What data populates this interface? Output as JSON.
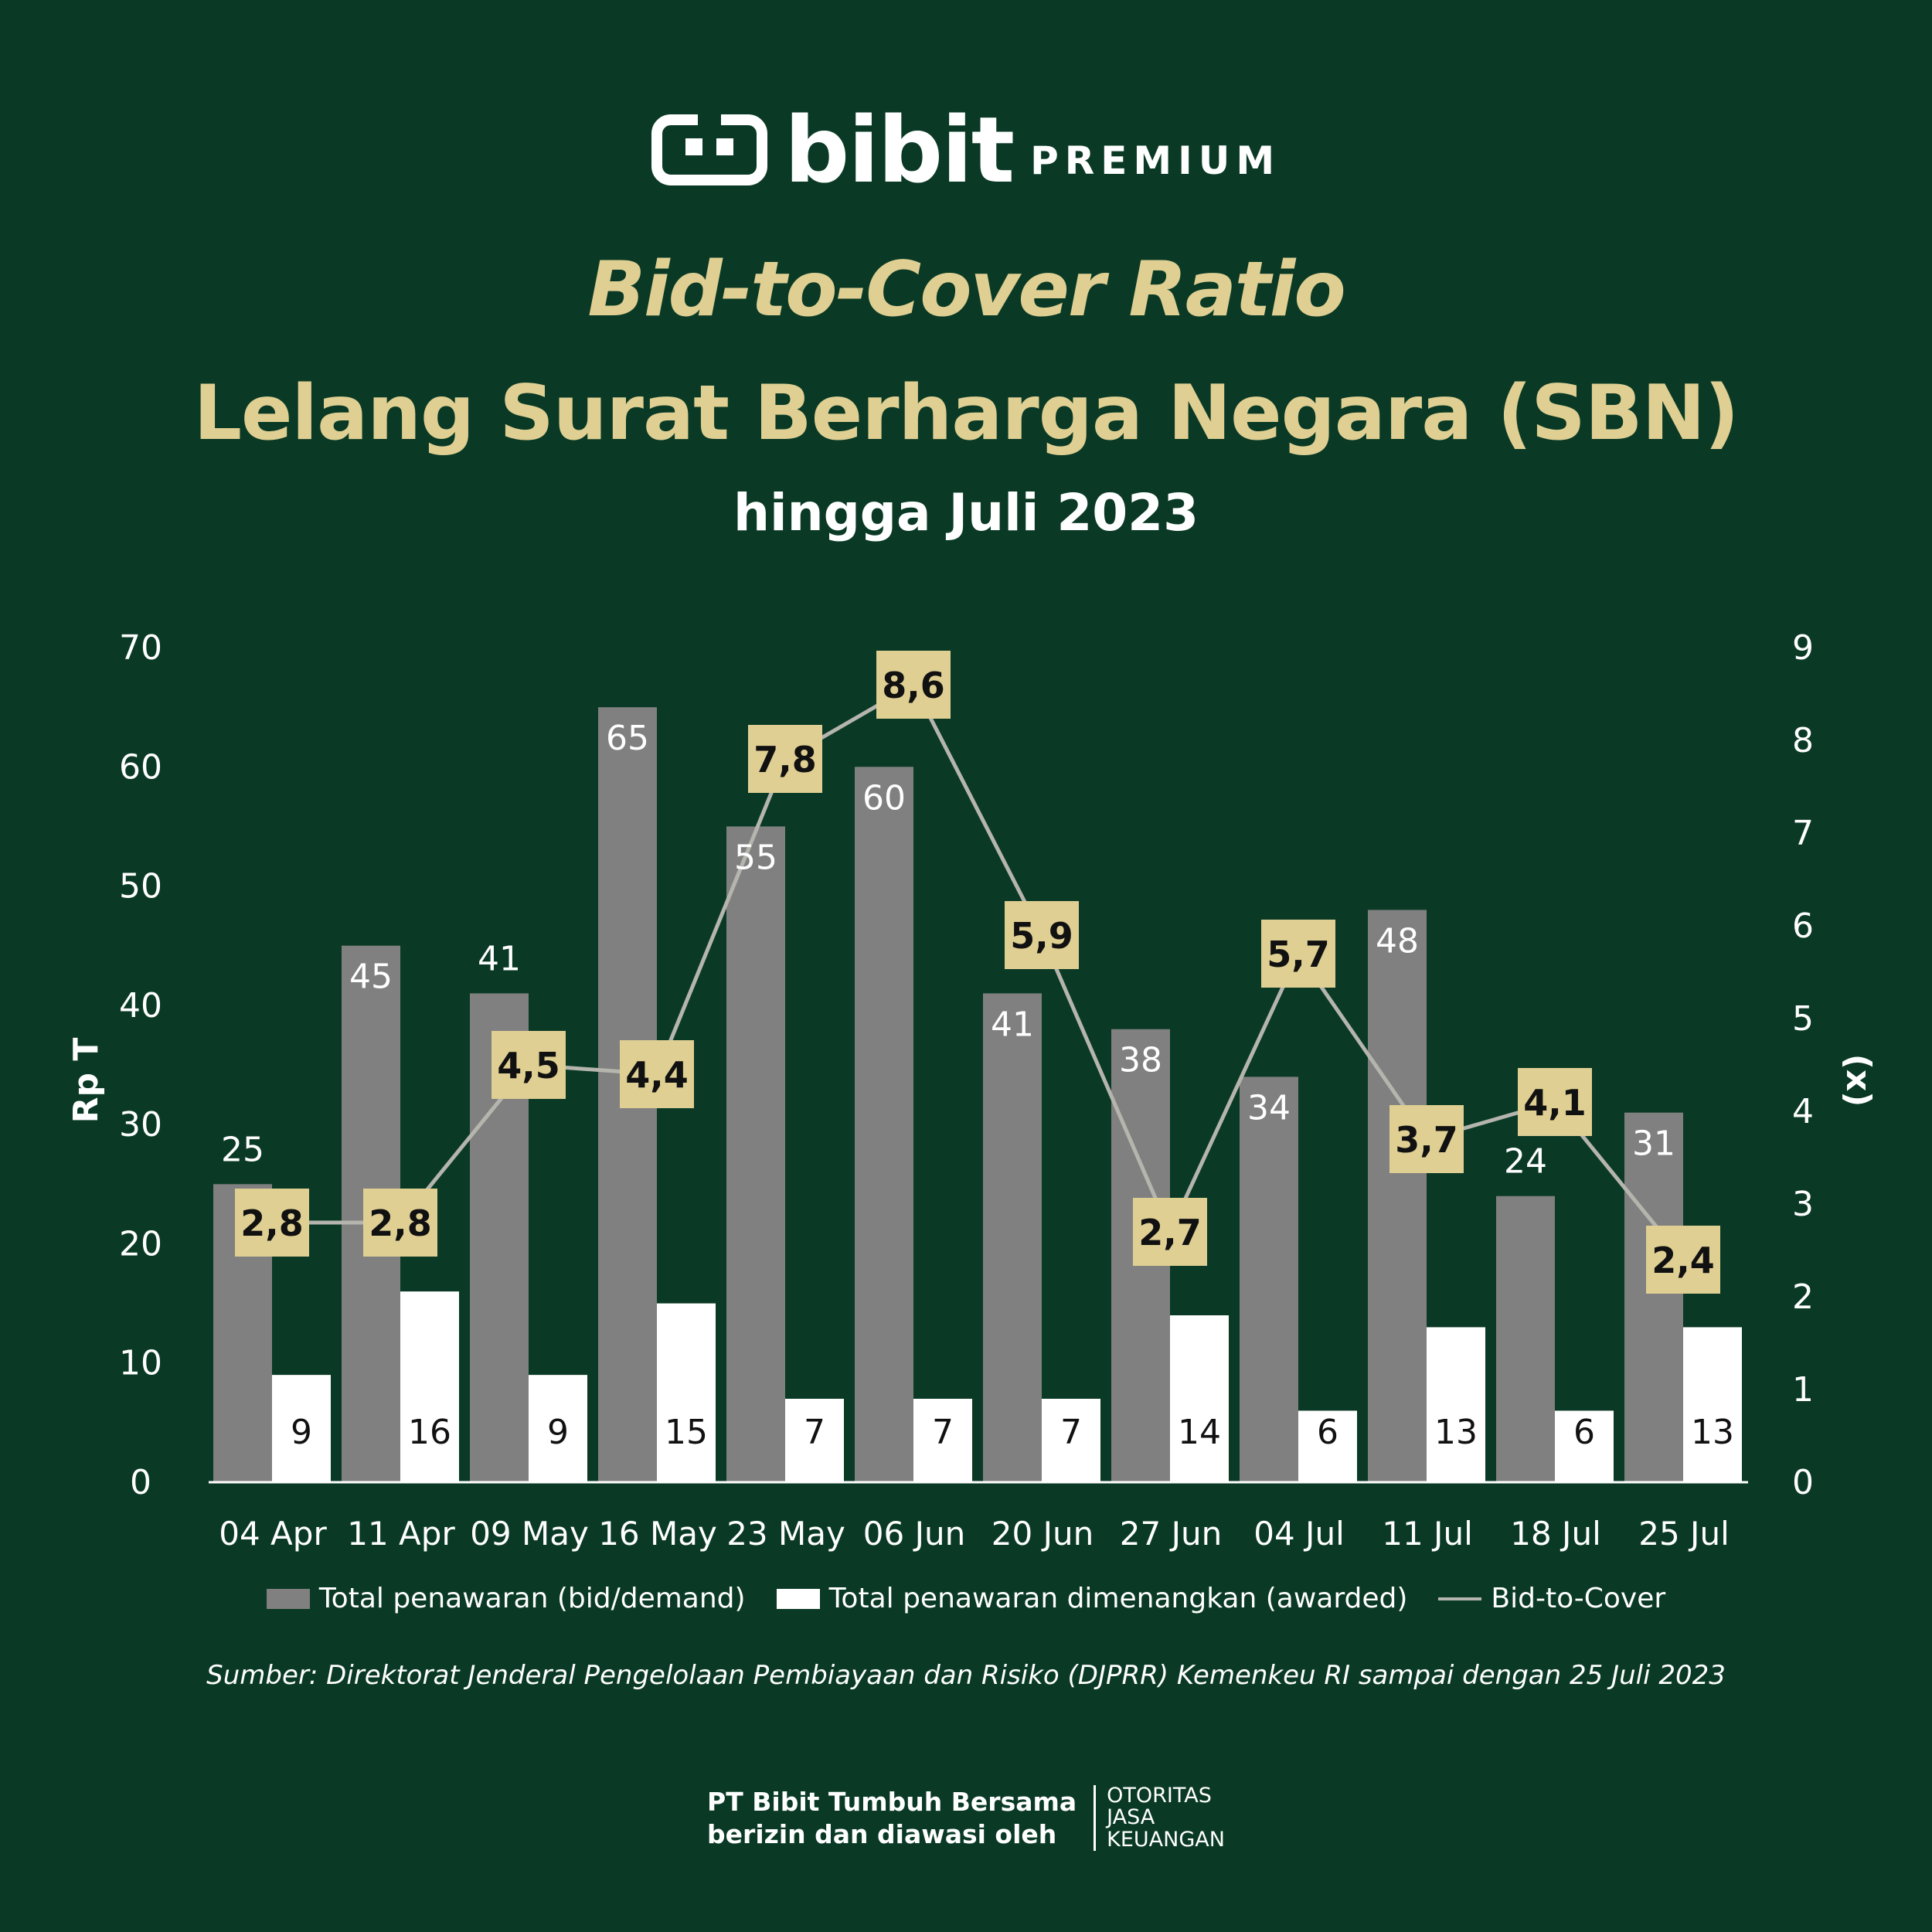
{
  "header": {
    "brand_name": "bibit",
    "brand_tier": "PREMIUM",
    "title_line1": "Bid-to-Cover Ratio",
    "title_line2": "Lelang Surat Berharga Negara (SBN)",
    "subtitle": "hingga Juli 2023"
  },
  "colors": {
    "background": "#0a3a25",
    "accent_gold": "#dfcf93",
    "bid_bar": "#808080",
    "awarded_bar": "#ffffff",
    "ratio_line": "#b5b5ae",
    "ratio_label_bg": "#dfcf93"
  },
  "chart_data": {
    "type": "bar",
    "categories": [
      "04 Apr",
      "11 Apr",
      "09 May",
      "16 May",
      "23 May",
      "06 Jun",
      "20 Jun",
      "27 Jun",
      "04 Jul",
      "11 Jul",
      "18 Jul",
      "25 Jul"
    ],
    "series": [
      {
        "name": "Total penawaran (bid/demand)",
        "type": "bar",
        "axis": "left",
        "values": [
          25,
          45,
          41,
          65,
          55,
          60,
          41,
          38,
          34,
          48,
          24,
          31
        ],
        "labels": [
          "25",
          "45",
          "41",
          "65",
          "55",
          "60",
          "41",
          "38",
          "34",
          "48",
          "24",
          "31"
        ]
      },
      {
        "name": "Total penawaran dimenangkan (awarded)",
        "type": "bar",
        "axis": "left",
        "values": [
          9,
          16,
          9,
          15,
          7,
          7,
          7,
          14,
          6,
          13,
          6,
          13
        ],
        "labels": [
          "9",
          "16",
          "9",
          "15",
          "7",
          "7",
          "7",
          "14",
          "6",
          "13",
          "6",
          "13"
        ]
      },
      {
        "name": "Bid-to-Cover",
        "type": "line",
        "axis": "right",
        "values": [
          2.8,
          2.8,
          4.5,
          4.4,
          7.8,
          8.6,
          5.9,
          2.7,
          5.7,
          3.7,
          4.1,
          2.4
        ],
        "labels": [
          "2,8",
          "2,8",
          "4,5",
          "4,4",
          "7,8",
          "8,6",
          "5,9",
          "2,7",
          "5,7",
          "3,7",
          "4,1",
          "2,4"
        ]
      }
    ],
    "ylabel": "Rp T",
    "y2label": "(x)",
    "ylim": [
      0,
      70
    ],
    "y2lim": [
      0,
      9
    ],
    "yticks": [
      "0",
      "10",
      "20",
      "30",
      "40",
      "50",
      "60",
      "70"
    ],
    "y2ticks": [
      "0",
      "1",
      "2",
      "3",
      "4",
      "5",
      "6",
      "7",
      "8",
      "9"
    ],
    "grid": false,
    "legend": "bottom"
  },
  "source": "Sumber: Direktorat Jenderal Pengelolaan Pembiayaan dan Risiko (DJPRR) Kemenkeu RI sampai dengan 25 Juli 2023",
  "footer": {
    "company_line1": "PT Bibit Tumbuh Bersama",
    "company_line2": "berizin dan diawasi oleh",
    "regulator_line1": "OTORITAS",
    "regulator_line2": "JASA",
    "regulator_line3": "KEUANGAN"
  }
}
